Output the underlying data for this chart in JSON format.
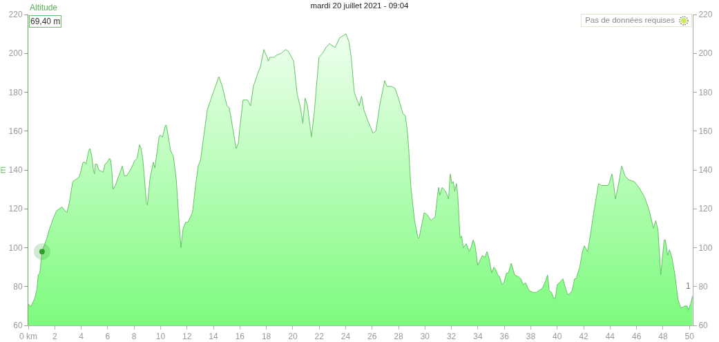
{
  "chart_data": {
    "type": "area",
    "title": "mardi 20 juillet 2021 - 09:04",
    "ylabel": "m",
    "annotations": [
      "69,40 m",
      "Pas de données requises",
      "1"
    ],
    "x": [
      0,
      0.1,
      0.22,
      0.49,
      0.66,
      0.75,
      0.87,
      1.04,
      1.36,
      1.62,
      1.88,
      2.14,
      2.54,
      2.92,
      3.1,
      3.36,
      3.79,
      3.88,
      4.14,
      4.28,
      4.37,
      4.57,
      4.66,
      4.8,
      4.92,
      5.01,
      5.07,
      5.19,
      5.33,
      5.62,
      5.67,
      5.8,
      5.97,
      6.14,
      6.23,
      6.32,
      6.4,
      6.58,
      6.84,
      7.01,
      7.1,
      7.27,
      7.42,
      7.62,
      7.8,
      8.06,
      8.23,
      8.41,
      8.53,
      8.67,
      8.93,
      9.01,
      9.19,
      9.36,
      9.45,
      9.57,
      9.89,
      9.97,
      10.15,
      10.37,
      10.44,
      10.76,
      10.97,
      11.1,
      11.19,
      11.36,
      11.54,
      11.71,
      11.89,
      12.06,
      12.41,
      12.67,
      12.85,
      13.02,
      13.54,
      13.89,
      14.41,
      14.67,
      15.02,
      15.2,
      15.72,
      15.89,
      15.98,
      16.24,
      16.58,
      16.81,
      17.02,
      17.37,
      17.55,
      17.81,
      17.93,
      18.07,
      18.15,
      18.28,
      18.59,
      18.76,
      19.11,
      19.46,
      19.67,
      20.07,
      20.33,
      20.59,
      20.76,
      20.94,
      21.11,
      21.41,
      21.63,
      21.98,
      22.25,
      22.51,
      22.77,
      23.2,
      23.55,
      24.02,
      24.25,
      24.42,
      24.65,
      25.03,
      25.2,
      25.38,
      25.64,
      26.07,
      26.28,
      26.6,
      26.95,
      27.12,
      27.47,
      27.73,
      27.99,
      28.33,
      28.51,
      28.65,
      28.77,
      28.86,
      28.94,
      29.21,
      29.47,
      29.56,
      29.64,
      29.94,
      30.16,
      30.46,
      30.77,
      30.95,
      31.03,
      31.12,
      31.3,
      31.56,
      31.78,
      31.91,
      32.03,
      32.13,
      32.25,
      32.38,
      32.48,
      32.65,
      32.77,
      32.9,
      33.12,
      33.35,
      33.47,
      33.64,
      33.79,
      33.99,
      34.34,
      34.52,
      34.69,
      34.86,
      35.04,
      35.21,
      35.33,
      35.51,
      35.64,
      35.82,
      35.96,
      36.17,
      36.31,
      36.52,
      36.78,
      37.08,
      37.25,
      37.42,
      37.6,
      37.87,
      38.17,
      38.43,
      38.61,
      38.87,
      39.13,
      39.27,
      39.39,
      39.56,
      39.74,
      39.86,
      40,
      40.17,
      40.43,
      40.55,
      40.78,
      40.9,
      41.13,
      41.31,
      41.43,
      41.7,
      41.91,
      42.05,
      42.3,
      42.52,
      42.78,
      43.13,
      43.34,
      43.57,
      43.83,
      43.92,
      44.14,
      44.26,
      44.4,
      44.56,
      44.7,
      44.87,
      45.13,
      45.39,
      45.83,
      46.18,
      46.61,
      46.96,
      47.28,
      47.45,
      47.62,
      47.83,
      48.09,
      48.18,
      48.35,
      48.49,
      48.67,
      48.88,
      49.14,
      49.36,
      49.66,
      49.83,
      49.92,
      50.09,
      50.23
    ],
    "series": [
      {
        "name": "Altitude",
        "color": "#7dfb7d",
        "values": [
          71,
          70,
          70,
          74,
          79,
          86,
          87,
          98,
          104,
          110,
          115,
          119,
          121,
          118,
          123,
          134,
          136,
          137,
          144,
          144,
          143,
          150,
          151,
          147,
          140,
          138,
          143,
          143,
          140,
          139,
          139,
          143,
          144,
          146,
          145,
          139,
          130,
          132,
          137,
          140,
          142,
          137,
          137,
          139,
          141,
          145,
          146,
          153,
          151,
          145,
          123,
          122,
          135,
          141,
          144,
          141,
          157,
          158,
          157,
          163,
          163,
          150,
          147,
          140,
          135,
          117,
          100,
          110,
          113,
          113,
          118,
          133,
          142,
          145,
          171,
          178,
          188,
          183,
          173,
          172,
          151,
          154,
          161,
          176,
          176,
          173,
          183,
          190,
          193,
          202,
          200,
          198,
          196,
          198,
          198,
          199,
          200,
          202,
          201,
          196,
          179,
          172,
          164,
          177,
          173,
          157,
          170,
          198,
          200,
          203,
          205,
          203,
          208,
          210,
          206,
          198,
          180,
          173,
          178,
          171,
          166,
          159,
          160,
          174,
          186,
          183,
          183,
          182,
          177,
          169,
          168,
          161,
          151,
          139,
          131,
          114,
          105,
          105,
          108,
          118,
          117,
          114,
          116,
          127,
          131,
          127,
          131,
          129,
          125,
          138,
          133,
          134,
          129,
          133,
          127,
          105,
          106,
          100,
          102,
          98,
          100,
          104,
          101,
          91,
          96,
          95,
          98,
          94,
          87,
          90,
          89,
          86,
          85,
          81,
          82,
          87,
          87,
          92,
          86,
          85,
          84,
          81,
          82,
          78,
          77,
          77,
          78,
          79,
          83,
          86,
          78,
          77,
          74,
          74,
          81,
          82,
          84,
          81,
          76,
          76,
          78,
          84,
          84,
          90,
          98,
          101,
          98,
          107,
          119,
          133,
          132,
          132,
          132,
          133,
          138,
          133,
          125,
          130,
          135,
          142,
          137,
          135,
          134,
          131,
          126,
          119,
          110,
          114,
          109,
          86,
          104,
          104,
          96,
          99,
          95,
          87,
          73,
          69,
          70,
          70,
          68,
          71,
          75
        ]
      },
      {
        "type": "scatter",
        "marker": "circle",
        "color": "#2f9e2f",
        "x": [
          1.04
        ],
        "values": [
          98
        ]
      }
    ],
    "xlim": [
      0,
      50.25
    ],
    "xticks": [
      {
        "value": 0,
        "label": "0 km"
      },
      2,
      4,
      6,
      8,
      10,
      12,
      14,
      16,
      18,
      20,
      22,
      24,
      26,
      28,
      30,
      32,
      34,
      36,
      38,
      40,
      42,
      44,
      46,
      48,
      50
    ],
    "ylim": [
      60,
      220
    ],
    "yticks": [
      60,
      80,
      100,
      120,
      140,
      160,
      180,
      200,
      220
    ],
    "y2lim": [
      60,
      220
    ],
    "y2ticks": [
      60,
      80,
      100,
      120,
      140,
      160,
      180,
      200,
      220
    ]
  }
}
